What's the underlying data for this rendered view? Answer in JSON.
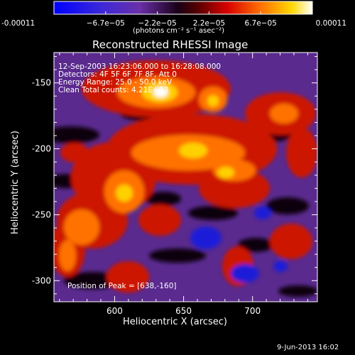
{
  "colorbar": {
    "ticks": [
      "-0.00011",
      "−6.7e−05",
      "−2.2e−05",
      "2.2e−05",
      "6.7e−05",
      "0.00011"
    ],
    "label": "(photons cm⁻² s⁻¹ asec⁻²)"
  },
  "chart_data": {
    "type": "heatmap",
    "title": "Reconstructed RHESSI Image",
    "xlabel": "Heliocentric X (arcsec)",
    "ylabel": "Heliocentric Y (arcsec)",
    "xlim": [
      556,
      747
    ],
    "ylim": [
      -316,
      -127
    ],
    "xticks": [
      600,
      650,
      700
    ],
    "yticks": [
      -150,
      -200,
      -250,
      -300
    ],
    "zlim": [
      -0.00011,
      0.00011
    ],
    "colormap": "RHESSI thermal (blue-purple-black-red-orange-yellow-white)",
    "peak": [
      638,
      -160
    ],
    "info_lines": [
      "12-Sep-2003 16:23:06.000 to 16:28:08.000",
      "Detectors: 4F 5F 6F 7F 8F, Att 0",
      "Energy Range: 25.0 - 50.0 keV",
      "Clean     Total counts: 4.21E+03"
    ],
    "peak_text": "Position of Peak = [638,-160]"
  },
  "footer": {
    "date": "9-Jun-2013 16:02"
  }
}
